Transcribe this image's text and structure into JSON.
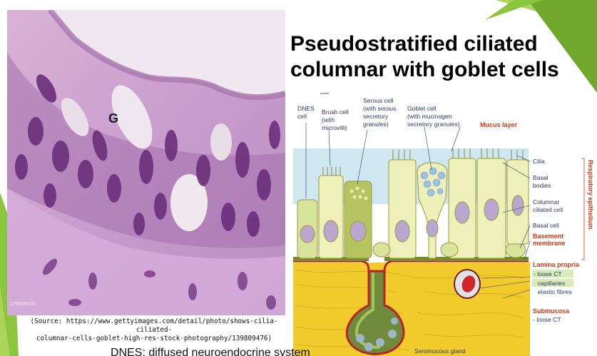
{
  "slide": {
    "title_line1": "Pseudostratified ciliated",
    "title_line2": "columnar with goblet cells",
    "source_line1": "(Source: https://www.gettyimages.com/detail/photo/shows-cilia-ciliated-",
    "source_line2": "columnar-cells-goblet-high-res-stock-photography/139809476)",
    "footer_text": "DNES: diffused neuroendocrine system",
    "accent_colors": [
      "#8cc63f",
      "#6fa82c",
      "#a9d65a"
    ]
  },
  "micrograph": {
    "label_g": "G",
    "watermark": "139809476"
  },
  "diagram": {
    "labels": {
      "dnes_1": "DNES",
      "dnes_2": "cell",
      "brush_1": "Brush cell",
      "brush_2": "(with",
      "brush_3": "microvilli)",
      "serous_1": "Serous cell",
      "serous_2": "(with serous",
      "serous_3": "secretory",
      "serous_4": "granules)",
      "goblet_1": "Goblet cell",
      "goblet_2": "(with mucinogen",
      "goblet_3": "secretory granules)",
      "mucus": "Mucus layer",
      "cilia": "Cilia",
      "basal_bodies_1": "Basal",
      "basal_bodies_2": "bodies",
      "columnar_1": "Columnar",
      "columnar_2": "ciliated cell",
      "basal_cell": "Basal cell",
      "basement_1": "Basement",
      "basement_2": "membrane",
      "lamina": "Lamina propria",
      "loose_ct_1": "- loose CT",
      "capillaries": "capillaries",
      "elastic": "elastic fibres",
      "submucosa": "Submucosa",
      "loose_ct_2": "- loose CT",
      "seromucous": "Seromucous gland",
      "respiratory": "Respiratory epithelium"
    }
  }
}
